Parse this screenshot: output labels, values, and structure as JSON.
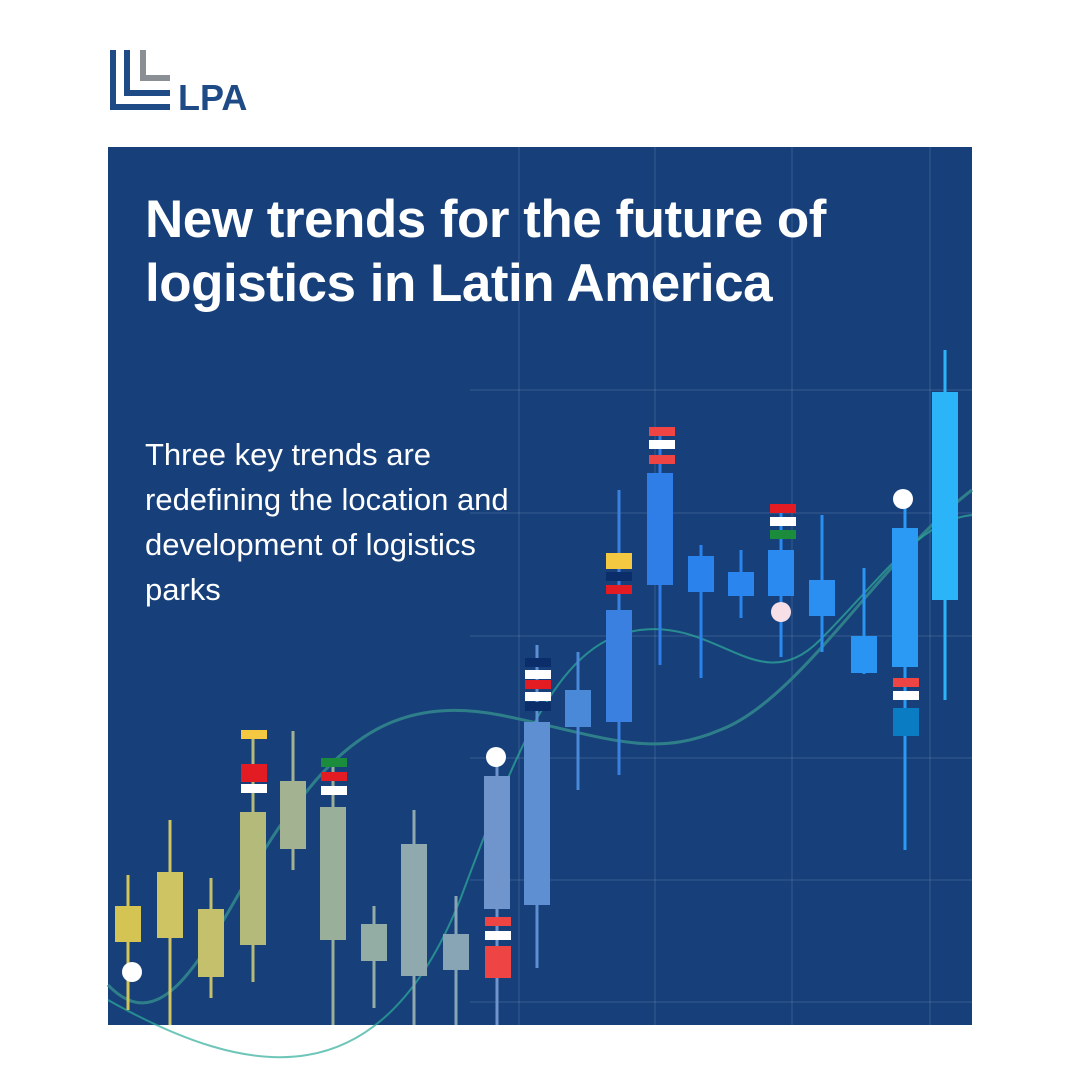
{
  "logo": {
    "text": "LPA"
  },
  "header": {
    "title": "New trends for the future of logistics in Latin America",
    "subtitle": "Three key trends are redefining the location and development of logistics parks"
  }
}
